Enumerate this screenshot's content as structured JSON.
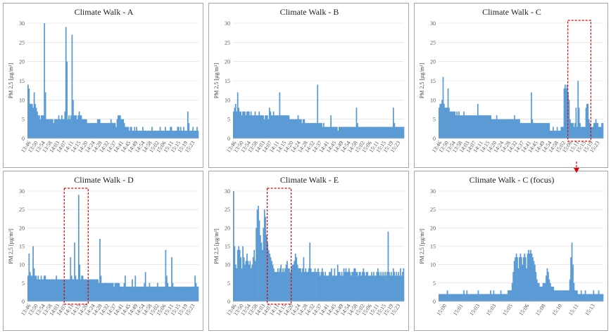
{
  "chart_data": [
    {
      "id": "A",
      "type": "bar",
      "title": "Climate Walk - A",
      "ylabel": "PM 2,5 [µg/m³]",
      "ylim": [
        0,
        30
      ],
      "yticks": [
        0,
        5,
        10,
        15,
        20,
        25,
        30
      ],
      "xticks": [
        "13:46",
        "13:50",
        "13:54",
        "13:58",
        "14:03",
        "14:07",
        "14:11",
        "14:15",
        "14:20",
        "14:24",
        "14:28",
        "14:32",
        "14:37",
        "14:41",
        "14:45",
        "14:49",
        "14:54",
        "14:58",
        "15:02",
        "15:06",
        "15:11",
        "15:15",
        "15:19",
        "15:23"
      ],
      "values": [
        14,
        13,
        9,
        9,
        9,
        8,
        12,
        9,
        8,
        7,
        6,
        6,
        5,
        6,
        6,
        6,
        30,
        12,
        5,
        5,
        5,
        5,
        5,
        5,
        5,
        4,
        5,
        5,
        5,
        5,
        6,
        5,
        5,
        6,
        5,
        5,
        7,
        29,
        20,
        5,
        6,
        5,
        6,
        27,
        10,
        6,
        6,
        6,
        5,
        6,
        7,
        6,
        6,
        5,
        5,
        5,
        5,
        5,
        4,
        4,
        4,
        4,
        4,
        4,
        4,
        4,
        4,
        4,
        5,
        5,
        5,
        4,
        4,
        4,
        4,
        4,
        4,
        4,
        4,
        4,
        4,
        5,
        4,
        4,
        4,
        4,
        3,
        5,
        6,
        6,
        6,
        5,
        5,
        5,
        4,
        3,
        3,
        3,
        3,
        2,
        3,
        3,
        2,
        2,
        3,
        2,
        3,
        2,
        2,
        2,
        2,
        2,
        3,
        2,
        2,
        2,
        2,
        2,
        2,
        2,
        2,
        3,
        2,
        2,
        2,
        2,
        2,
        2,
        2,
        3,
        2,
        2,
        2,
        2,
        3,
        2,
        2,
        2,
        2,
        3,
        3,
        2,
        2,
        2,
        2,
        2,
        3,
        3,
        2,
        3,
        2,
        2,
        3,
        2,
        2,
        2,
        7,
        4,
        2,
        2,
        2,
        3,
        2,
        2,
        2,
        3,
        2
      ]
    },
    {
      "id": "B",
      "type": "bar",
      "title": "Climate Walk - B",
      "ylabel": "PM 2,5 [µg/m³]",
      "ylim": [
        0,
        30
      ],
      "yticks": [
        0,
        5,
        10,
        15,
        20,
        25,
        30
      ],
      "xticks": [
        "13:46",
        "13:50",
        "13:54",
        "13:58",
        "14:03",
        "14:07",
        "14:11",
        "14:15",
        "14:20",
        "14:24",
        "14:28",
        "14:32",
        "14:37",
        "14:41",
        "14:45",
        "14:49",
        "14:54",
        "14:58",
        "15:02",
        "15:06",
        "15:11",
        "15:15",
        "15:19",
        "15:23"
      ],
      "values": [
        7,
        8,
        9,
        7,
        12,
        8,
        7,
        7,
        6,
        7,
        7,
        7,
        6,
        7,
        7,
        7,
        6,
        7,
        6,
        6,
        6,
        7,
        6,
        6,
        6,
        7,
        6,
        6,
        6,
        6,
        5,
        6,
        6,
        6,
        5,
        8,
        7,
        6,
        6,
        7,
        6,
        6,
        6,
        6,
        6,
        12,
        6,
        6,
        6,
        6,
        6,
        6,
        6,
        6,
        6,
        5,
        5,
        5,
        5,
        5,
        5,
        5,
        5,
        6,
        5,
        5,
        5,
        4,
        5,
        5,
        4,
        4,
        4,
        4,
        4,
        4,
        4,
        4,
        4,
        4,
        4,
        4,
        14,
        4,
        4,
        4,
        4,
        3,
        4,
        3,
        3,
        3,
        3,
        3,
        3,
        6,
        3,
        3,
        3,
        3,
        3,
        3,
        2,
        3,
        3,
        3,
        3,
        3,
        3,
        3,
        3,
        3,
        3,
        3,
        3,
        3,
        3,
        3,
        3,
        3,
        8,
        4,
        3,
        3,
        3,
        3,
        3,
        3,
        3,
        3,
        3,
        3,
        3,
        3,
        3,
        3,
        3,
        3,
        3,
        3,
        3,
        3,
        3,
        3,
        3,
        3,
        3,
        3,
        3,
        3,
        3,
        3,
        3,
        3,
        3,
        3,
        8,
        4,
        3,
        3,
        3,
        3,
        3,
        3,
        3,
        3,
        3
      ]
    },
    {
      "id": "C",
      "type": "bar",
      "title": "Climate Walk - C",
      "ylabel": "PM 2,5 [µg/m³]",
      "ylim": [
        0,
        30
      ],
      "yticks": [
        0,
        5,
        10,
        15,
        20,
        25,
        30
      ],
      "xticks": [
        "13:46",
        "13:50",
        "13:54",
        "13:58",
        "14:03",
        "14:07",
        "14:11",
        "14:15",
        "14:20",
        "14:24",
        "14:28",
        "14:32",
        "14:37",
        "14:41",
        "14:45",
        "14:49",
        "14:54",
        "14:58",
        "15:02",
        "15:06",
        "15:11",
        "15:15",
        "15:19",
        "15:23"
      ],
      "values": [
        8,
        9,
        9,
        10,
        16,
        9,
        8,
        8,
        8,
        13,
        8,
        7,
        7,
        7,
        7,
        7,
        7,
        6,
        7,
        6,
        7,
        6,
        6,
        6,
        6,
        7,
        6,
        6,
        6,
        6,
        6,
        6,
        6,
        6,
        6,
        6,
        6,
        6,
        6,
        9,
        6,
        6,
        6,
        6,
        6,
        6,
        6,
        6,
        6,
        6,
        6,
        6,
        6,
        5,
        5,
        5,
        5,
        5,
        6,
        5,
        5,
        5,
        5,
        5,
        5,
        5,
        5,
        5,
        5,
        5,
        5,
        5,
        5,
        5,
        5,
        5,
        6,
        5,
        5,
        5,
        5,
        5,
        4,
        4,
        4,
        4,
        4,
        4,
        4,
        4,
        4,
        4,
        4,
        12,
        5,
        4,
        4,
        4,
        4,
        4,
        4,
        4,
        4,
        4,
        4,
        4,
        4,
        4,
        4,
        4,
        4,
        4,
        2,
        2,
        2,
        3,
        2,
        2,
        2,
        3,
        2,
        2,
        2,
        3,
        3,
        3,
        13,
        14,
        13,
        14,
        12,
        10,
        5,
        4,
        4,
        4,
        3,
        4,
        8,
        3,
        15,
        8,
        4,
        3,
        3,
        3,
        3,
        3,
        8,
        9,
        9,
        5,
        4,
        3,
        3,
        3,
        4,
        4,
        5,
        4,
        4,
        3,
        3,
        3,
        4,
        4
      ]
    },
    {
      "id": "D",
      "type": "bar",
      "title": "Climate Walk - D",
      "ylabel": "PM 2,5 [µg/m³]",
      "ylim": [
        0,
        30
      ],
      "yticks": [
        0,
        5,
        10,
        15,
        20,
        25,
        30
      ],
      "xticks": [
        "13:46",
        "13:50",
        "13:54",
        "13:58",
        "14:03",
        "14:07",
        "14:11",
        "14:15",
        "14:20",
        "14:24",
        "14:28",
        "14:32",
        "14:37",
        "14:41",
        "14:45",
        "14:49",
        "14:54",
        "14:58",
        "15:02",
        "15:06",
        "15:11",
        "15:15",
        "15:19",
        "15:23"
      ],
      "values": [
        7,
        13,
        8,
        7,
        7,
        15,
        9,
        7,
        7,
        6,
        7,
        6,
        6,
        7,
        6,
        6,
        7,
        7,
        6,
        6,
        6,
        6,
        6,
        6,
        6,
        6,
        6,
        6,
        7,
        6,
        6,
        6,
        6,
        6,
        6,
        6,
        6,
        6,
        6,
        6,
        6,
        6,
        12,
        7,
        6,
        6,
        16,
        7,
        6,
        6,
        29,
        10,
        6,
        7,
        7,
        6,
        6,
        6,
        6,
        6,
        6,
        6,
        6,
        6,
        6,
        6,
        6,
        6,
        6,
        6,
        5,
        17,
        7,
        5,
        5,
        5,
        5,
        5,
        5,
        5,
        5,
        5,
        5,
        5,
        5,
        4,
        5,
        5,
        5,
        5,
        5,
        4,
        4,
        4,
        4,
        5,
        7,
        4,
        4,
        4,
        4,
        4,
        4,
        6,
        4,
        4,
        7,
        4,
        4,
        4,
        4,
        4,
        4,
        4,
        4,
        5,
        8,
        4,
        4,
        4,
        5,
        4,
        4,
        4,
        4,
        4,
        4,
        4,
        5,
        4,
        4,
        4,
        4,
        4,
        4,
        4,
        14,
        7,
        5,
        4,
        4,
        4,
        12,
        5,
        4,
        4,
        4,
        4,
        4,
        4,
        4,
        4,
        4,
        4,
        4,
        4,
        4,
        4,
        4,
        4,
        4,
        4,
        4,
        4,
        4,
        7,
        5,
        4,
        4
      ]
    },
    {
      "id": "E",
      "type": "bar",
      "title": "Climate Walk - E",
      "ylabel": "PM 2,5 [µg/m³]",
      "ylim": [
        0,
        30
      ],
      "yticks": [
        0,
        5,
        10,
        15,
        20,
        25,
        30
      ],
      "xticks": [
        "13:46",
        "13:50",
        "13:54",
        "13:58",
        "14:03",
        "14:07",
        "14:11",
        "14:15",
        "14:20",
        "14:24",
        "14:28",
        "14:32",
        "14:37",
        "14:41",
        "14:45",
        "14:49",
        "14:54",
        "14:58",
        "15:02",
        "15:06",
        "15:11",
        "15:15",
        "15:19",
        "15:23"
      ],
      "values": [
        30,
        15,
        10,
        9,
        14,
        15,
        14,
        12,
        9,
        15,
        12,
        10,
        11,
        13,
        11,
        10,
        11,
        9,
        10,
        12,
        14,
        11,
        20,
        25,
        26,
        22,
        18,
        16,
        14,
        20,
        25,
        23,
        18,
        16,
        14,
        13,
        12,
        11,
        10,
        9,
        8,
        8,
        8,
        9,
        8,
        9,
        10,
        8,
        9,
        8,
        9,
        10,
        11,
        9,
        9,
        8,
        9,
        10,
        10,
        11,
        13,
        12,
        10,
        9,
        9,
        9,
        8,
        9,
        12,
        8,
        9,
        8,
        8,
        9,
        16,
        9,
        8,
        8,
        8,
        9,
        8,
        8,
        9,
        8,
        7,
        8,
        9,
        8,
        7,
        8,
        7,
        7,
        7,
        8,
        8,
        9,
        7,
        7,
        9,
        7,
        7,
        10,
        8,
        8,
        7,
        8,
        7,
        9,
        8,
        9,
        8,
        8,
        9,
        8,
        7,
        8,
        8,
        9,
        9,
        8,
        8,
        7,
        8,
        8,
        7,
        8,
        9,
        8,
        7,
        8,
        8,
        7,
        7,
        7,
        8,
        7,
        8,
        7,
        7,
        8,
        9,
        8,
        7,
        8,
        7,
        8,
        7,
        8,
        7,
        8,
        19,
        8,
        7,
        8,
        7,
        9,
        8,
        7,
        8,
        7,
        8,
        7,
        9,
        7,
        8,
        9
      ]
    },
    {
      "id": "C-focus",
      "type": "bar",
      "title": "Climate Walk - C (focus)",
      "ylabel": "PM 2,5 [µg/m³]",
      "ylim": [
        0,
        30
      ],
      "yticks": [
        0,
        5,
        10,
        15,
        20,
        25,
        30
      ],
      "xticks": [
        "15:00",
        "15:01",
        "15:03",
        "15:03",
        "15:05",
        "15:06",
        "15:08",
        "15:10",
        "15:11",
        "15:13"
      ],
      "values": [
        2,
        2,
        2,
        2,
        2,
        2,
        2,
        2,
        3,
        2,
        2,
        2,
        2,
        2,
        2,
        2,
        2,
        2,
        2,
        2,
        2,
        2,
        2,
        2,
        3,
        2,
        2,
        3,
        2,
        2,
        2,
        2,
        2,
        2,
        2,
        2,
        2,
        2,
        3,
        2,
        2,
        2,
        2,
        2,
        2,
        2,
        2,
        2,
        2,
        2,
        3,
        2,
        2,
        3,
        2,
        2,
        2,
        2,
        2,
        2,
        3,
        2,
        2,
        2,
        2,
        2,
        2,
        3,
        3,
        3,
        3,
        5,
        8,
        11,
        12,
        13,
        12,
        9,
        12,
        13,
        12,
        10,
        12,
        13,
        12,
        9,
        13,
        14,
        13,
        14,
        13,
        12,
        11,
        10,
        8,
        6,
        5,
        5,
        4,
        4,
        4,
        5,
        5,
        5,
        7,
        9,
        8,
        6,
        5,
        4,
        4,
        4,
        3,
        3,
        3,
        3,
        3,
        3,
        3,
        3,
        3,
        3,
        3,
        3,
        3,
        3,
        3,
        6,
        12,
        16,
        10,
        5,
        3,
        3,
        3,
        2,
        2,
        2,
        3,
        2,
        2,
        2,
        3,
        2,
        2,
        2,
        2,
        2,
        2,
        2,
        3,
        2,
        2,
        2,
        2,
        3,
        2,
        2,
        2,
        2
      ]
    }
  ],
  "highlights": [
    {
      "chart": "C",
      "from": 0.785,
      "to": 0.925
    },
    {
      "chart": "D",
      "from": 0.215,
      "to": 0.355
    },
    {
      "chart": "E",
      "from": 0.2,
      "to": 0.34
    }
  ]
}
